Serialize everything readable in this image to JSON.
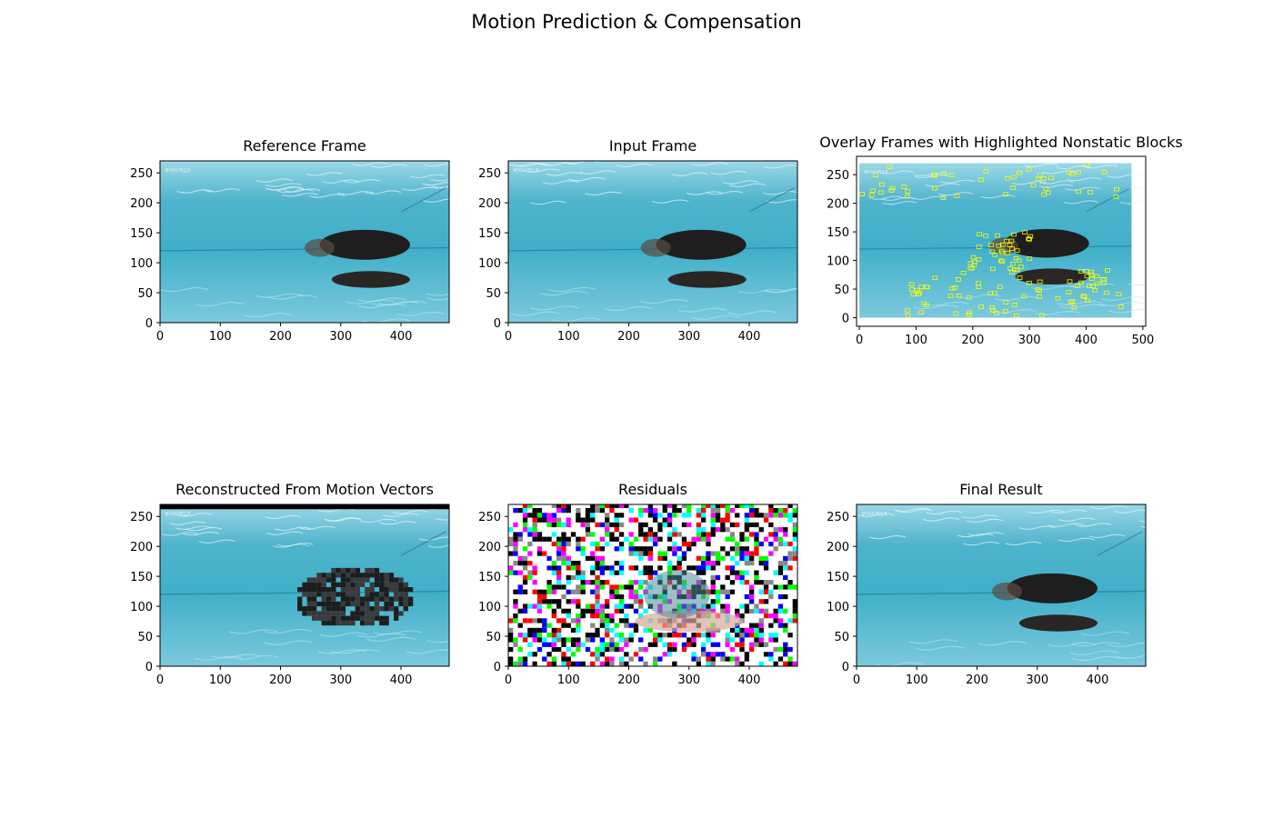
{
  "figure": {
    "title": "Motion Prediction & Compensation"
  },
  "colors": {
    "water_deep": "#3fa7c3",
    "water_light": "#8fd6e6",
    "dog": "#1e1e1e",
    "lane": "#2a6f9a",
    "highlight": "#ffff00",
    "residual_bg": "#000000"
  },
  "watermark": "AnimalTV",
  "chart_data": [
    {
      "type": "image",
      "title": "Reference Frame",
      "kind": "frame",
      "xticks": [
        0,
        100,
        200,
        300,
        400
      ],
      "yticks": [
        0,
        50,
        100,
        150,
        200,
        250
      ],
      "xlim": [
        0,
        480
      ],
      "ylim": [
        270,
        0
      ]
    },
    {
      "type": "image",
      "title": "Input Frame",
      "kind": "frame",
      "xticks": [
        0,
        100,
        200,
        300,
        400
      ],
      "yticks": [
        0,
        50,
        100,
        150,
        200,
        250
      ],
      "xlim": [
        0,
        480
      ],
      "ylim": [
        270,
        0
      ]
    },
    {
      "type": "image",
      "title": "Overlay Frames with Highlighted Nonstatic Blocks",
      "kind": "overlay",
      "xticks": [
        0,
        100,
        200,
        300,
        400,
        500
      ],
      "yticks": [
        0,
        50,
        100,
        150,
        200,
        250
      ],
      "xlim": [
        -5,
        505
      ],
      "ylim": [
        282,
        -15
      ]
    },
    {
      "type": "image",
      "title": "Reconstructed From Motion Vectors",
      "kind": "recon",
      "xticks": [
        0,
        100,
        200,
        300,
        400
      ],
      "yticks": [
        0,
        50,
        100,
        150,
        200,
        250
      ],
      "xlim": [
        0,
        480
      ],
      "ylim": [
        270,
        0
      ]
    },
    {
      "type": "image",
      "title": "Residuals",
      "kind": "residual",
      "xticks": [
        0,
        100,
        200,
        300,
        400
      ],
      "yticks": [
        0,
        50,
        100,
        150,
        200,
        250
      ],
      "xlim": [
        0,
        480
      ],
      "ylim": [
        270,
        0
      ]
    },
    {
      "type": "image",
      "title": "Final Result",
      "kind": "frame",
      "xticks": [
        0,
        100,
        200,
        300,
        400
      ],
      "yticks": [
        0,
        50,
        100,
        150,
        200,
        250
      ],
      "xlim": [
        0,
        480
      ],
      "ylim": [
        270,
        0
      ]
    }
  ]
}
